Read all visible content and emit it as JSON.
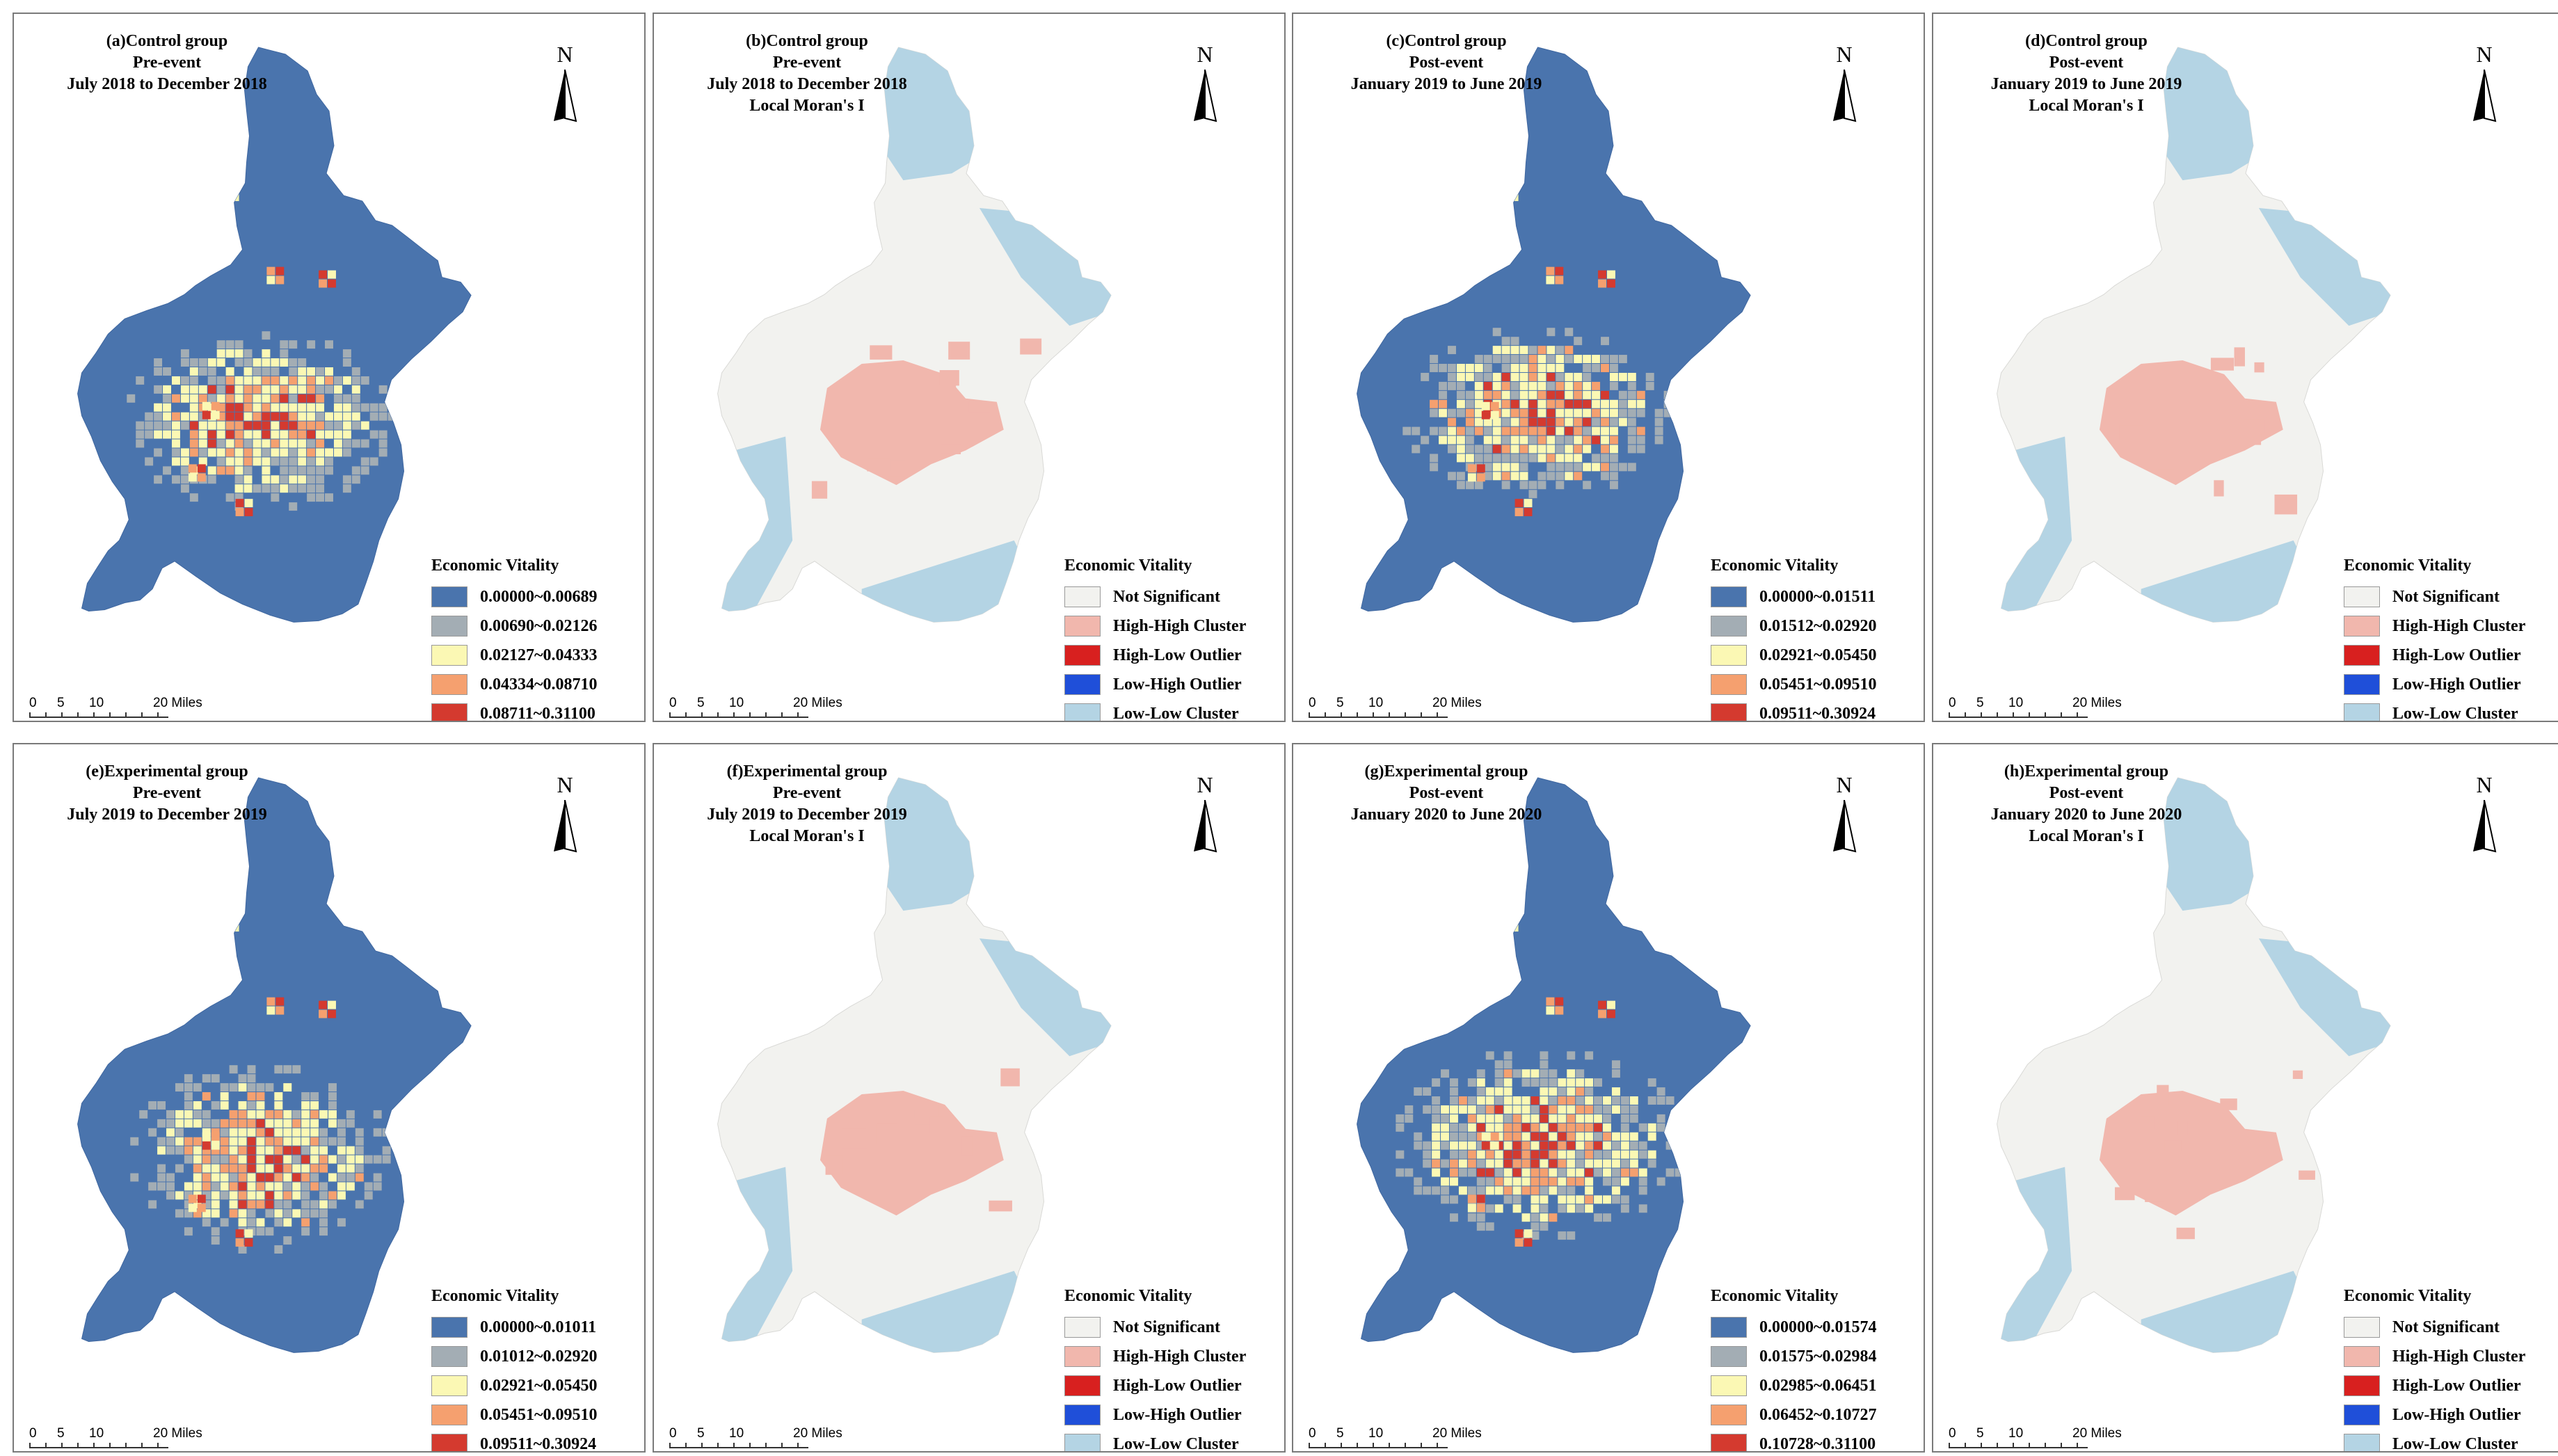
{
  "panels": [
    {
      "id": "a",
      "title": [
        "(a)Control group",
        "Pre-event",
        "July 2018 to December 2018"
      ],
      "type": "vitality",
      "legend_title": "Economic Vitality",
      "legend": [
        {
          "label": "0.00000~0.00689",
          "color": "#4a74ad"
        },
        {
          "label": "0.00690~0.02126",
          "color": "#a3adb4"
        },
        {
          "label": "0.02127~0.04333",
          "color": "#fbf8b4"
        },
        {
          "label": "0.04334~0.08710",
          "color": "#f5a06f"
        },
        {
          "label": "0.08711~0.31100",
          "color": "#d43a2f"
        }
      ]
    },
    {
      "id": "b",
      "title": [
        "(b)Control group",
        "Pre-event",
        "July 2018 to December 2018",
        "Local Moran's I"
      ],
      "type": "moran",
      "legend_title": "Economic Vitality",
      "legend": [
        {
          "label": "Not Significant",
          "color": "#f2f2ef"
        },
        {
          "label": "High-High Cluster",
          "color": "#f1b7ad"
        },
        {
          "label": "High-Low Outlier",
          "color": "#d8201f"
        },
        {
          "label": "Low-High Outlier",
          "color": "#1f4fd9"
        },
        {
          "label": "Low-Low Cluster",
          "color": "#b4d4e4"
        }
      ]
    },
    {
      "id": "c",
      "title": [
        "(c)Control group",
        "Post-event",
        "January 2019 to June 2019"
      ],
      "type": "vitality",
      "legend_title": "Economic Vitality",
      "legend": [
        {
          "label": "0.00000~0.01511",
          "color": "#4a74ad"
        },
        {
          "label": "0.01512~0.02920",
          "color": "#a3adb4"
        },
        {
          "label": "0.02921~0.05450",
          "color": "#fbf8b4"
        },
        {
          "label": "0.05451~0.09510",
          "color": "#f5a06f"
        },
        {
          "label": "0.09511~0.30924",
          "color": "#d43a2f"
        }
      ]
    },
    {
      "id": "d",
      "title": [
        "(d)Control group",
        "Post-event",
        "January 2019 to June 2019",
        "Local Moran's I"
      ],
      "type": "moran",
      "legend_title": "Economic Vitality",
      "legend": [
        {
          "label": "Not Significant",
          "color": "#f2f2ef"
        },
        {
          "label": "High-High Cluster",
          "color": "#f1b7ad"
        },
        {
          "label": "High-Low Outlier",
          "color": "#d8201f"
        },
        {
          "label": "Low-High Outlier",
          "color": "#1f4fd9"
        },
        {
          "label": "Low-Low Cluster",
          "color": "#b4d4e4"
        }
      ]
    },
    {
      "id": "e",
      "title": [
        "(e)Experimental group",
        "Pre-event",
        "July 2019 to December 2019"
      ],
      "type": "vitality",
      "legend_title": "Economic Vitality",
      "legend": [
        {
          "label": "0.00000~0.01011",
          "color": "#4a74ad"
        },
        {
          "label": "0.01012~0.02920",
          "color": "#a3adb4"
        },
        {
          "label": "0.02921~0.05450",
          "color": "#fbf8b4"
        },
        {
          "label": "0.05451~0.09510",
          "color": "#f5a06f"
        },
        {
          "label": "0.09511~0.30924",
          "color": "#d43a2f"
        }
      ]
    },
    {
      "id": "f",
      "title": [
        "(f)Experimental group",
        "Pre-event",
        "July 2019 to December 2019",
        "Local Moran's I"
      ],
      "type": "moran",
      "legend_title": "Economic Vitality",
      "legend": [
        {
          "label": "Not Significant",
          "color": "#f2f2ef"
        },
        {
          "label": "High-High Cluster",
          "color": "#f1b7ad"
        },
        {
          "label": "High-Low Outlier",
          "color": "#d8201f"
        },
        {
          "label": "Low-High Outlier",
          "color": "#1f4fd9"
        },
        {
          "label": "Low-Low Cluster",
          "color": "#b4d4e4"
        }
      ]
    },
    {
      "id": "g",
      "title": [
        "(g)Experimental group",
        "Post-event",
        "January 2020 to June 2020"
      ],
      "type": "vitality",
      "legend_title": "Economic Vitality",
      "legend": [
        {
          "label": "0.00000~0.01574",
          "color": "#4a74ad"
        },
        {
          "label": "0.01575~0.02984",
          "color": "#a3adb4"
        },
        {
          "label": "0.02985~0.06451",
          "color": "#fbf8b4"
        },
        {
          "label": "0.06452~0.10727",
          "color": "#f5a06f"
        },
        {
          "label": "0.10728~0.31100",
          "color": "#d43a2f"
        }
      ]
    },
    {
      "id": "h",
      "title": [
        "(h)Experimental group",
        "Post-event",
        "January 2020 to June 2020",
        "Local Moran's I"
      ],
      "type": "moran",
      "legend_title": "Economic Vitality",
      "legend": [
        {
          "label": "Not Significant",
          "color": "#f2f2ef"
        },
        {
          "label": "High-High Cluster",
          "color": "#f1b7ad"
        },
        {
          "label": "High-Low Outlier",
          "color": "#d8201f"
        },
        {
          "label": "Low-High Outlier",
          "color": "#1f4fd9"
        },
        {
          "label": "Low-Low Cluster",
          "color": "#b4d4e4"
        }
      ]
    }
  ],
  "north_label": "N",
  "scale_labels": [
    "0",
    "5",
    "10",
    "20 Miles"
  ],
  "colors": {
    "vitality_base": "#4a74ad",
    "moran_base": "#f2f2ef",
    "moran_lowlow": "#b4d4e4",
    "moran_highhigh": "#f1b7ad"
  }
}
